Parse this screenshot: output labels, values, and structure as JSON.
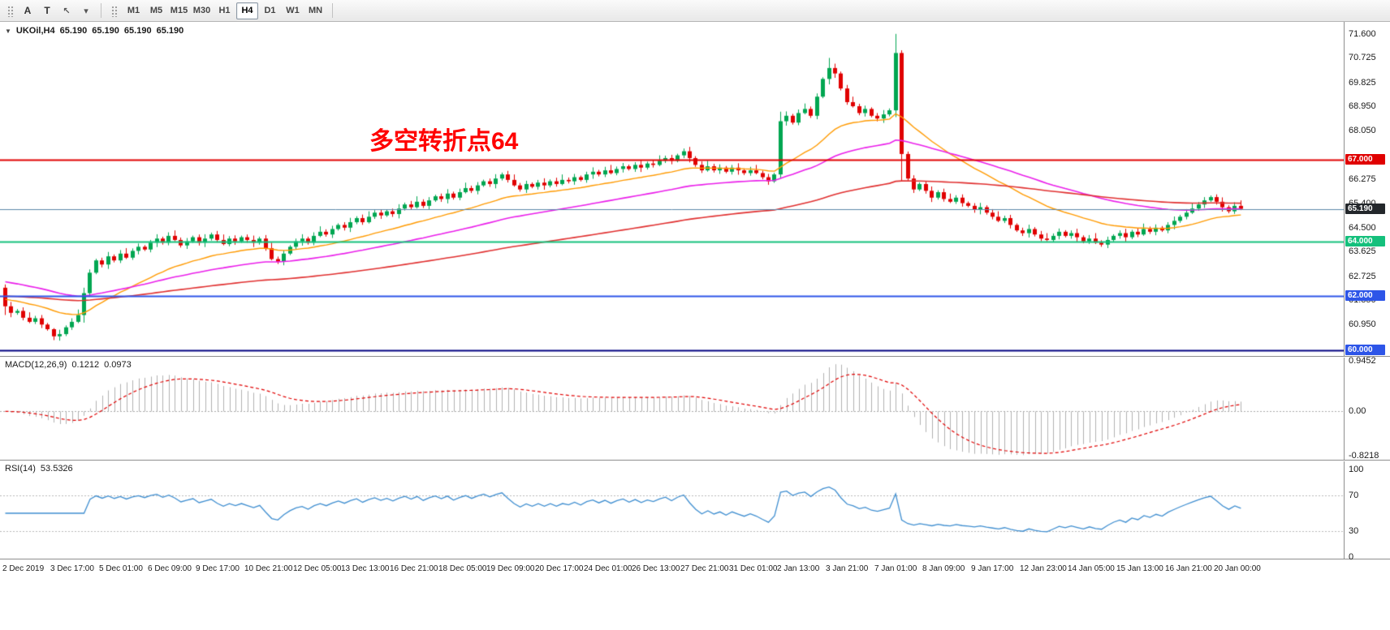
{
  "toolbar": {
    "tool_a_label": "A",
    "tool_t_label": "T",
    "timeframes": [
      "M1",
      "M5",
      "M15",
      "M30",
      "H1",
      "H4",
      "D1",
      "W1",
      "MN"
    ],
    "active_timeframe": "H4"
  },
  "icons": {
    "triangle": "▼",
    "cursor": "↖",
    "chevron": "▾"
  },
  "symbol_header": {
    "symbol": "UKOil,H4",
    "open": "65.190",
    "high": "65.190",
    "low": "65.190",
    "close": "65.190"
  },
  "annotation": {
    "text": "多空转折点64",
    "color": "#ff0000"
  },
  "macd_label": {
    "name": "MACD(12,26,9)",
    "value": "0.1212",
    "signal": "0.0973"
  },
  "rsi_label": {
    "name": "RSI(14)",
    "value": "53.5326"
  },
  "chart_data": {
    "type": "candlestick",
    "title": "UKOil H4 with MACD(12,26,9) and RSI(14)",
    "price_axis": {
      "min": 59.8,
      "max": 72.04,
      "ticks": [
        71.6,
        70.725,
        69.825,
        68.95,
        68.05,
        66.275,
        65.4,
        64.5,
        63.625,
        62.725,
        61.85,
        60.95
      ]
    },
    "price_badges": [
      {
        "price": 67.0,
        "label": "67.000",
        "color": "#e00000"
      },
      {
        "price": 65.19,
        "label": "65.190",
        "color": "#23272b"
      },
      {
        "price": 64.0,
        "label": "64.000",
        "color": "#14c07c"
      },
      {
        "price": 62.0,
        "label": "62.000",
        "color": "#2d55e8"
      },
      {
        "price": 60.0,
        "label": "60.000",
        "color": "#2d55e8"
      }
    ],
    "h_lines": [
      {
        "price": 67.0,
        "color": "#e00000",
        "width": 2
      },
      {
        "price": 64.0,
        "color": "#14c07c",
        "width": 2
      },
      {
        "price": 62.0,
        "color": "#2d55e8",
        "width": 2
      },
      {
        "price": 60.0,
        "color": "#000080",
        "width": 2
      }
    ],
    "current_price": 65.19,
    "bid_line_color": "#5b87a8",
    "candles": {
      "up_color": "#00a651",
      "down_color": "#e00000",
      "first_open": 62.3,
      "closes": [
        61.62,
        61.38,
        61.45,
        61.2,
        61.05,
        61.18,
        60.95,
        60.78,
        60.52,
        60.6,
        60.85,
        61.05,
        61.3,
        62.1,
        62.85,
        63.3,
        63.15,
        63.45,
        63.3,
        63.55,
        63.4,
        63.65,
        63.8,
        63.7,
        63.95,
        64.1,
        63.95,
        64.2,
        64.05,
        63.85,
        64.0,
        64.15,
        63.95,
        64.1,
        64.25,
        64.05,
        63.9,
        64.1,
        64.0,
        64.15,
        64.05,
        63.95,
        64.1,
        63.75,
        63.35,
        63.25,
        63.55,
        63.8,
        64.0,
        64.1,
        63.95,
        64.2,
        64.35,
        64.25,
        64.45,
        64.6,
        64.5,
        64.7,
        64.85,
        64.7,
        64.9,
        65.05,
        64.95,
        65.1,
        65.0,
        65.2,
        65.35,
        65.25,
        65.45,
        65.3,
        65.5,
        65.65,
        65.55,
        65.75,
        65.6,
        65.8,
        65.95,
        65.85,
        66.05,
        66.2,
        66.1,
        66.3,
        66.45,
        66.25,
        66.05,
        65.9,
        66.1,
        66.0,
        66.15,
        66.05,
        66.2,
        66.1,
        66.25,
        66.2,
        66.35,
        66.25,
        66.45,
        66.55,
        66.45,
        66.6,
        66.5,
        66.65,
        66.75,
        66.65,
        66.8,
        66.7,
        66.85,
        66.8,
        66.95,
        67.05,
        66.95,
        67.15,
        67.3,
        67.05,
        66.8,
        66.6,
        66.75,
        66.6,
        66.7,
        66.55,
        66.7,
        66.6,
        66.5,
        66.6,
        66.5,
        66.35,
        66.2,
        66.45,
        68.4,
        68.6,
        68.35,
        68.7,
        68.85,
        68.6,
        69.3,
        69.95,
        70.35,
        70.15,
        69.6,
        69.1,
        68.95,
        68.7,
        68.85,
        68.6,
        68.5,
        68.65,
        68.8,
        70.9,
        67.2,
        66.3,
        65.9,
        66.1,
        65.85,
        65.6,
        65.8,
        65.55,
        65.45,
        65.6,
        65.4,
        65.3,
        65.15,
        65.25,
        65.05,
        64.9,
        64.75,
        64.85,
        64.6,
        64.4,
        64.3,
        64.45,
        64.25,
        64.1,
        64.05,
        64.2,
        64.35,
        64.2,
        64.3,
        64.15,
        64.0,
        64.1,
        63.95,
        63.88,
        64.05,
        64.2,
        64.3,
        64.15,
        64.35,
        64.25,
        64.45,
        64.35,
        64.5,
        64.4,
        64.6,
        64.75,
        64.9,
        65.05,
        65.2,
        65.35,
        65.5,
        65.62,
        65.45,
        65.25,
        65.1,
        65.3,
        65.19
      ],
      "wick_pattern": [
        0.1,
        0.16,
        0.07,
        0.13,
        0.2,
        0.09,
        0.12,
        0.06
      ],
      "wick_overrides": {
        "0": [
          62.42,
          61.3
        ],
        "8": [
          60.82,
          60.38
        ],
        "13": [
          62.3,
          61.02
        ],
        "128": [
          68.75,
          66.3
        ],
        "136": [
          70.72,
          69.75
        ],
        "147": [
          71.6,
          68.55
        ],
        "148": [
          71.0,
          66.2
        ]
      }
    },
    "moving_averages": [
      {
        "period": 24,
        "seed": 61.9,
        "color": "#ff9a00",
        "width": 1.4
      },
      {
        "period": 56,
        "seed": 62.55,
        "color": "#ea1fea",
        "width": 1.6
      },
      {
        "period": 130,
        "seed": 62.0,
        "color": "#e03030",
        "width": 1.6
      }
    ],
    "macd": {
      "fast": 12,
      "slow": 26,
      "signal": 9,
      "draw_range": [
        -0.9,
        1.0
      ],
      "hist_color": "#b0b0b0",
      "signal_color": "#e00000",
      "y_labels": [
        {
          "value": 0.9452,
          "label": "0.9452"
        },
        {
          "value": 0,
          "label": "0.00"
        },
        {
          "value": -0.8218,
          "label": "-0.8218"
        }
      ]
    },
    "rsi": {
      "period": 14,
      "levels": [
        70,
        30
      ],
      "line_color": "#3f8ed0",
      "level_color": "#b8b8b8",
      "y_labels": [
        {
          "value": 100,
          "label": "100"
        },
        {
          "value": 70,
          "label": "70"
        },
        {
          "value": 30,
          "label": "30"
        },
        {
          "value": 0,
          "label": "0"
        }
      ]
    },
    "x_label_step": 8,
    "x_labels": [
      "2 Dec 2019",
      "3 Dec 17:00",
      "5 Dec 01:00",
      "6 Dec 09:00",
      "9 Dec 17:00",
      "10 Dec 21:00",
      "12 Dec 05:00",
      "13 Dec 13:00",
      "16 Dec 21:00",
      "18 Dec 05:00",
      "19 Dec 09:00",
      "20 Dec 17:00",
      "24 Dec 01:00",
      "26 Dec 13:00",
      "27 Dec 21:00",
      "31 Dec 01:00",
      "2 Jan 13:00",
      "3 Jan 21:00",
      "7 Jan 01:00",
      "8 Jan 09:00",
      "9 Jan 17:00",
      "12 Jan 23:00",
      "14 Jan 05:00",
      "15 Jan 13:00",
      "16 Jan 21:00",
      "20 Jan 00:00"
    ]
  }
}
